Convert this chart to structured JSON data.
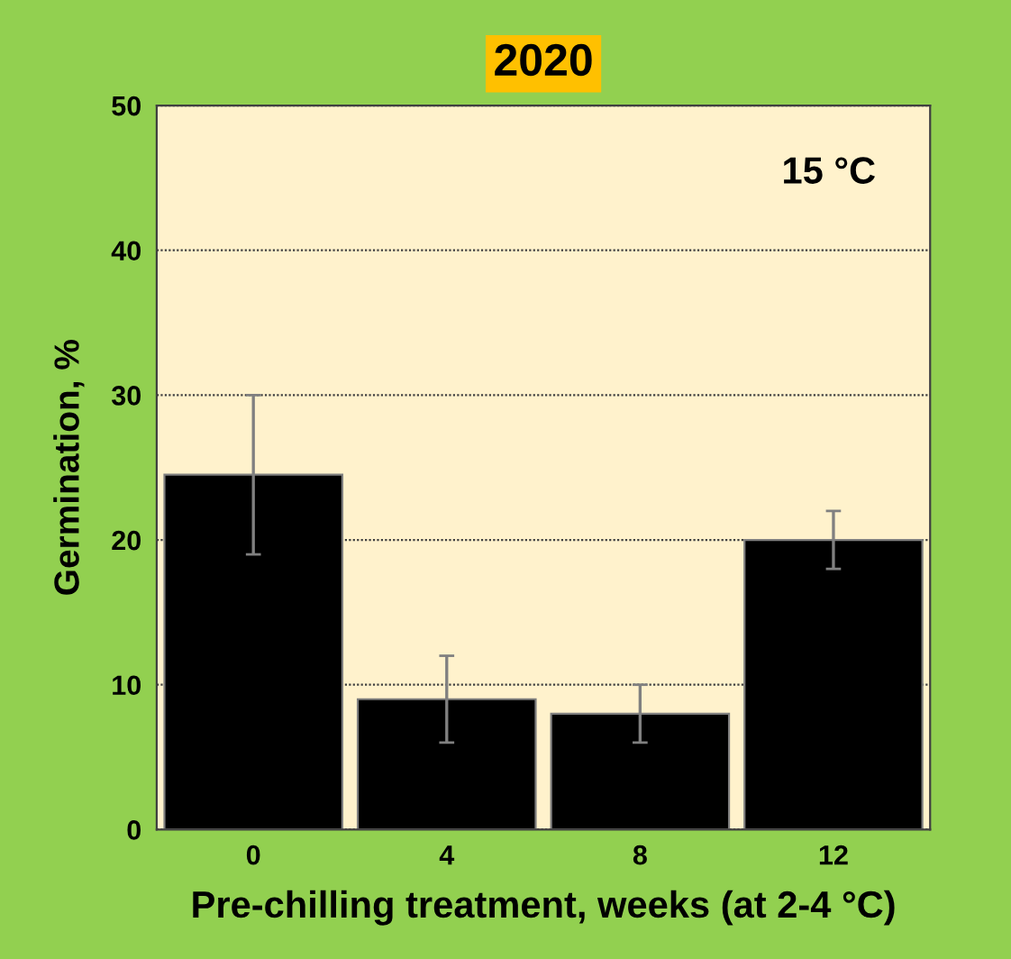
{
  "chart_data": {
    "type": "bar",
    "title": "2020",
    "xlabel": "Pre-chilling treatment, weeks (at 2-4 °C)",
    "ylabel": "Germination, %",
    "categories": [
      "0",
      "4",
      "8",
      "12"
    ],
    "values": [
      24.5,
      9,
      8,
      20
    ],
    "errors": [
      5.5,
      3,
      2,
      2
    ],
    "color": "#000000",
    "ylim": [
      0,
      50
    ],
    "yticks": [
      0,
      10,
      20,
      30,
      40,
      50
    ],
    "grid": "y",
    "annotations": [
      "15 °C"
    ]
  }
}
